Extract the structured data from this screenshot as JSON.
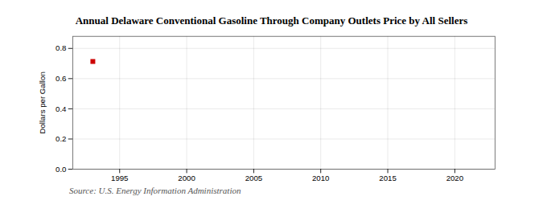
{
  "chart_data": {
    "type": "scatter",
    "title": "Annual Delaware Conventional Gasoline Through Company Outlets Price by All Sellers",
    "ylabel": "Dollars per Gallon",
    "source": "Source: U.S. Energy Information Administration",
    "x": [
      1993
    ],
    "values": [
      0.714
    ],
    "color": "#cc0000",
    "marker": "square",
    "xlim": [
      1991.5,
      2023
    ],
    "ylim": [
      0.0,
      0.88
    ],
    "xticks": [
      1995,
      2000,
      2005,
      2010,
      2015,
      2020
    ],
    "yticks": [
      {
        "value": 0.0,
        "label": "0.0"
      },
      0.2,
      0.4,
      0.6,
      0.8
    ],
    "grid": true
  }
}
